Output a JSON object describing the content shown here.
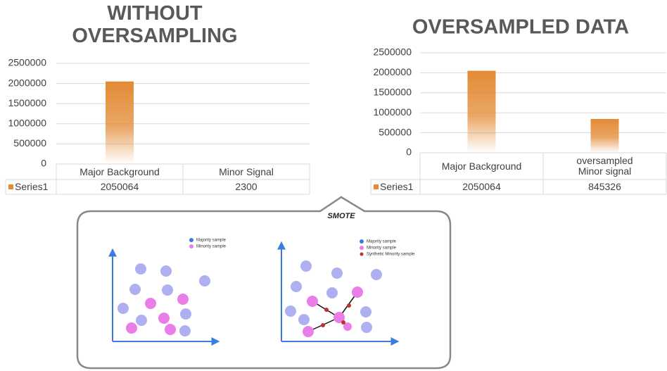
{
  "chart_data": [
    {
      "type": "bar",
      "title": "WITHOUT OVERSAMPLING",
      "categories": [
        "Major Background",
        "Minor Signal"
      ],
      "series": [
        {
          "name": "Series1",
          "color": "#e38a35",
          "values": [
            2050064,
            2300
          ]
        }
      ],
      "ylim": [
        0,
        2500000
      ],
      "yticks": [
        0,
        500000,
        1000000,
        1500000,
        2000000,
        2500000
      ],
      "grid": true
    },
    {
      "type": "bar",
      "title": "OVERSAMPLED DATA",
      "categories": [
        "Major Background",
        "oversampled Minor signal"
      ],
      "series": [
        {
          "name": "Series1",
          "color": "#e38a35",
          "values": [
            2050064,
            845326
          ]
        }
      ],
      "ylim": [
        0,
        2500000
      ],
      "yticks": [
        0,
        500000,
        1000000,
        1500000,
        2000000,
        2500000
      ],
      "grid": true
    }
  ],
  "diagram": {
    "title": "SMOTE",
    "left_legend": [
      "Majority sample",
      "Minority sample"
    ],
    "right_legend": [
      "Majority sample",
      "Minority sample",
      "Synthetic Minority sample"
    ]
  }
}
